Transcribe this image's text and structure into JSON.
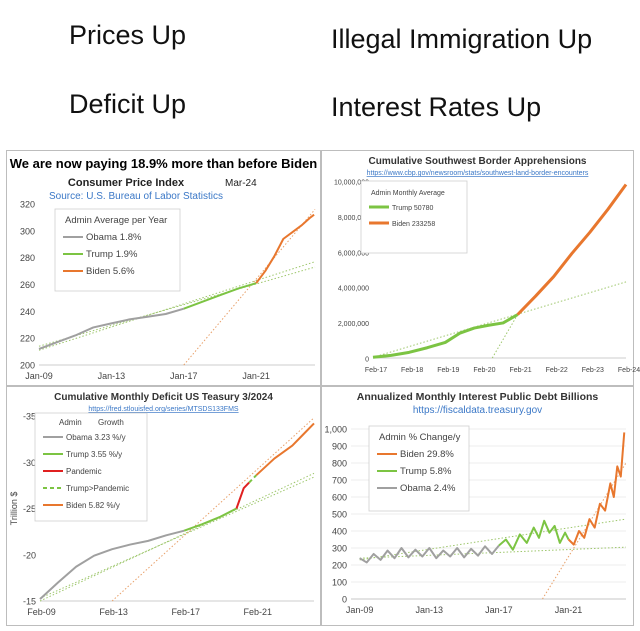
{
  "headlines": {
    "prices": "Prices Up",
    "immigration": "Illegal Immigration Up",
    "deficit": "Deficit Up",
    "rates": "Interest Rates Up"
  },
  "colors": {
    "obama": "#a0a0a0",
    "trump": "#7cc443",
    "biden": "#e8772e",
    "pandemic": "#e02020",
    "trend": "#9dc66b",
    "frame": "#bdbdbd"
  },
  "chart_data": [
    {
      "id": "cpi",
      "type": "line",
      "title": "We are now paying 18.9% more than before Biden",
      "subtitle": "Consumer Price Index",
      "date_label": "Mar-24",
      "source": "Source: U.S. Bureau of Labor Statistics",
      "x_ticks": [
        "Jan-09",
        "Jan-13",
        "Jan-17",
        "Jan-21"
      ],
      "y_ticks": [
        "200",
        "220",
        "240",
        "260",
        "280",
        "300",
        "320"
      ],
      "xlim": [
        2009.0,
        2024.25
      ],
      "ylim": [
        200,
        320
      ],
      "legend_title": "Admin Average per Year",
      "legend": [
        {
          "name": "Obama 1.8%",
          "color": "#a0a0a0"
        },
        {
          "name": "Trump 1.9%",
          "color": "#7cc443"
        },
        {
          "name": "Biden 5.6%",
          "color": "#e8772e"
        }
      ],
      "series": [
        {
          "name": "Obama",
          "color": "#a0a0a0",
          "points": [
            [
              2009.0,
              212
            ],
            [
              2010.0,
              217
            ],
            [
              2011.0,
              222
            ],
            [
              2012.0,
              228
            ],
            [
              2013.0,
              231
            ],
            [
              2014.0,
              234
            ],
            [
              2015.0,
              236
            ],
            [
              2016.0,
              238
            ],
            [
              2017.0,
              242
            ]
          ]
        },
        {
          "name": "Trump",
          "color": "#7cc443",
          "points": [
            [
              2017.0,
              242
            ],
            [
              2018.0,
              247
            ],
            [
              2019.0,
              252
            ],
            [
              2020.0,
              257
            ],
            [
              2021.0,
              261
            ]
          ]
        },
        {
          "name": "Biden",
          "color": "#e8772e",
          "points": [
            [
              2021.0,
              261
            ],
            [
              2021.5,
              270
            ],
            [
              2022.0,
              281
            ],
            [
              2022.5,
              294
            ],
            [
              2023.0,
              299
            ],
            [
              2023.5,
              304
            ],
            [
              2024.0,
              310
            ],
            [
              2024.2,
              312
            ]
          ]
        }
      ],
      "trends": [
        {
          "points": [
            [
              2009.0,
              211
            ],
            [
              2024.25,
              277
            ]
          ]
        },
        {
          "points": [
            [
              2009.0,
              214
            ],
            [
              2024.25,
              273
            ]
          ]
        },
        {
          "points": [
            [
              2017.0,
              200
            ],
            [
              2024.25,
              316
            ]
          ]
        }
      ]
    },
    {
      "id": "border",
      "type": "line",
      "title": "Cumulative Southwest Border Apprehensions",
      "source": "https://www.cbp.gov/newsroom/stats/southwest-land-border-encounters",
      "x_ticks": [
        "Feb-17",
        "Feb-18",
        "Feb-19",
        "Feb-20",
        "Feb-21",
        "Feb-22",
        "Feb-23",
        "Feb-24"
      ],
      "y_ticks": [
        "0",
        "2,000,000",
        "4,000,000",
        "6,000,000",
        "8,000,000",
        "10,000,000"
      ],
      "xlim": [
        2017.0,
        2024.0
      ],
      "ylim": [
        0,
        10000000
      ],
      "legend_title": "Admin Monthly Average",
      "legend": [
        {
          "name": "Trump 50780",
          "color": "#7cc443"
        },
        {
          "name": "Biden 233258",
          "color": "#e8772e"
        }
      ],
      "series": [
        {
          "name": "Trump",
          "color": "#7cc443",
          "points": [
            [
              2017.0,
              40000
            ],
            [
              2017.5,
              150000
            ],
            [
              2018.0,
              320000
            ],
            [
              2018.5,
              580000
            ],
            [
              2019.0,
              880000
            ],
            [
              2019.4,
              1400000
            ],
            [
              2019.8,
              1690000
            ],
            [
              2020.2,
              1850000
            ],
            [
              2020.6,
              1980000
            ],
            [
              2021.0,
              2450000
            ]
          ]
        },
        {
          "name": "Biden",
          "color": "#e8772e",
          "points": [
            [
              2021.0,
              2450000
            ],
            [
              2021.5,
              3500000
            ],
            [
              2022.0,
              4600000
            ],
            [
              2022.5,
              5900000
            ],
            [
              2023.0,
              7100000
            ],
            [
              2023.5,
              8400000
            ],
            [
              2024.0,
              9800000
            ]
          ]
        }
      ],
      "trends": [
        {
          "points": [
            [
              2017.0,
              40000
            ],
            [
              2024.0,
              4300000
            ]
          ]
        },
        {
          "points": [
            [
              2020.3,
              0
            ],
            [
              2021.0,
              2450000
            ]
          ]
        }
      ]
    },
    {
      "id": "deficit",
      "type": "line",
      "title": "Cumulative Monthly Deficit US Teasury 3/2024",
      "source": "https://fred.stlouisfed.org/series/MTSDS133FMS",
      "ylabel": "Trillion $",
      "x_ticks": [
        "Feb-09",
        "Feb-13",
        "Feb-17",
        "Feb-21"
      ],
      "y_ticks": [
        "-15",
        "-20",
        "-25",
        "-30",
        "-35"
      ],
      "xlim": [
        2009.0,
        2024.2
      ],
      "ylim": [
        -15,
        -35
      ],
      "legend_header": [
        "Admin",
        "Growth"
      ],
      "legend": [
        {
          "name": "Obama 3.23 %/y",
          "color": "#a0a0a0"
        },
        {
          "name": "Trump 3.55 %/y",
          "color": "#7cc443"
        },
        {
          "name": "Pandemic",
          "color": "#e02020"
        },
        {
          "name": "Trump>Pandemic",
          "color": "#7cc443"
        },
        {
          "name": "Biden 5.82 %/y",
          "color": "#e8772e"
        }
      ],
      "series": [
        {
          "name": "Obama",
          "color": "#a0a0a0",
          "points": [
            [
              2009.0,
              -15.2
            ],
            [
              2010.0,
              -17.0
            ],
            [
              2011.0,
              -18.7
            ],
            [
              2012.0,
              -19.9
            ],
            [
              2013.0,
              -20.6
            ],
            [
              2014.0,
              -21.1
            ],
            [
              2015.0,
              -21.5
            ],
            [
              2016.0,
              -22.1
            ],
            [
              2017.0,
              -22.6
            ]
          ]
        },
        {
          "name": "Trump",
          "color": "#7cc443",
          "points": [
            [
              2017.0,
              -22.6
            ],
            [
              2018.0,
              -23.3
            ],
            [
              2019.0,
              -24.1
            ],
            [
              2019.9,
              -25.0
            ]
          ]
        },
        {
          "name": "Pandemic",
          "color": "#e02020",
          "points": [
            [
              2019.9,
              -25.0
            ],
            [
              2020.3,
              -27.2
            ],
            [
              2020.6,
              -27.8
            ]
          ]
        },
        {
          "name": "Trump>Pandemic",
          "color": "#7cc443",
          "points": [
            [
              2020.6,
              -27.8
            ],
            [
              2021.0,
              -28.6
            ]
          ]
        },
        {
          "name": "Biden",
          "color": "#e8772e",
          "points": [
            [
              2021.0,
              -28.6
            ],
            [
              2022.0,
              -30.4
            ],
            [
              2023.0,
              -31.8
            ],
            [
              2023.6,
              -33.0
            ],
            [
              2024.2,
              -34.2
            ]
          ]
        }
      ],
      "trends": [
        {
          "points": [
            [
              2009.0,
              -15.0
            ],
            [
              2024.2,
              -28.8
            ]
          ]
        },
        {
          "points": [
            [
              2009.0,
              -15.3
            ],
            [
              2024.2,
              -28.4
            ]
          ]
        },
        {
          "points": [
            [
              2013.0,
              -15.0
            ],
            [
              2024.2,
              -34.8
            ]
          ]
        }
      ]
    },
    {
      "id": "interest",
      "type": "line",
      "title": "Annualized Monthly Interest Public Debt Billions",
      "source": "https://fiscaldata.treasury.gov",
      "x_ticks": [
        "Jan-09",
        "Jan-13",
        "Jan-17",
        "Jan-21"
      ],
      "y_ticks": [
        "0",
        "100",
        "200",
        "300",
        "400",
        "500",
        "600",
        "700",
        "800",
        "900",
        "1,000"
      ],
      "xlim": [
        2008.5,
        2024.3
      ],
      "ylim": [
        0,
        1000
      ],
      "legend_title": "Admin % Change/y",
      "legend": [
        {
          "name": "Biden 29.8%",
          "color": "#e8772e"
        },
        {
          "name": "Trump 5.8%",
          "color": "#7cc443"
        },
        {
          "name": "Obama 2.4%",
          "color": "#a0a0a0"
        }
      ],
      "series": [
        {
          "name": "Obama",
          "color": "#a0a0a0",
          "points": [
            [
              2009.0,
              240
            ],
            [
              2009.4,
              215
            ],
            [
              2009.8,
              265
            ],
            [
              2010.2,
              230
            ],
            [
              2010.6,
              285
            ],
            [
              2011.0,
              240
            ],
            [
              2011.4,
              300
            ],
            [
              2011.8,
              245
            ],
            [
              2012.2,
              290
            ],
            [
              2012.6,
              250
            ],
            [
              2013.0,
              300
            ],
            [
              2013.4,
              240
            ],
            [
              2013.8,
              285
            ],
            [
              2014.2,
              250
            ],
            [
              2014.6,
              300
            ],
            [
              2015.0,
              245
            ],
            [
              2015.4,
              295
            ],
            [
              2015.8,
              255
            ],
            [
              2016.2,
              310
            ],
            [
              2016.6,
              265
            ],
            [
              2017.0,
              315
            ]
          ]
        },
        {
          "name": "Trump",
          "color": "#7cc443",
          "points": [
            [
              2017.0,
              315
            ],
            [
              2017.4,
              350
            ],
            [
              2017.8,
              290
            ],
            [
              2018.2,
              380
            ],
            [
              2018.6,
              330
            ],
            [
              2019.0,
              420
            ],
            [
              2019.3,
              360
            ],
            [
              2019.6,
              460
            ],
            [
              2019.9,
              390
            ],
            [
              2020.2,
              430
            ],
            [
              2020.5,
              330
            ],
            [
              2020.8,
              390
            ],
            [
              2021.0,
              350
            ]
          ]
        },
        {
          "name": "Biden",
          "color": "#e8772e",
          "points": [
            [
              2021.0,
              350
            ],
            [
              2021.3,
              320
            ],
            [
              2021.6,
              400
            ],
            [
              2021.9,
              360
            ],
            [
              2022.2,
              470
            ],
            [
              2022.5,
              420
            ],
            [
              2022.8,
              560
            ],
            [
              2023.1,
              520
            ],
            [
              2023.4,
              680
            ],
            [
              2023.6,
              600
            ],
            [
              2023.8,
              780
            ],
            [
              2024.0,
              720
            ],
            [
              2024.2,
              980
            ]
          ]
        }
      ],
      "trends": [
        {
          "points": [
            [
              2009.0,
              240
            ],
            [
              2024.3,
              305
            ]
          ]
        },
        {
          "points": [
            [
              2009.0,
              230
            ],
            [
              2024.3,
              470
            ]
          ]
        },
        {
          "points": [
            [
              2019.5,
              0
            ],
            [
              2024.3,
              800
            ]
          ]
        }
      ]
    }
  ]
}
